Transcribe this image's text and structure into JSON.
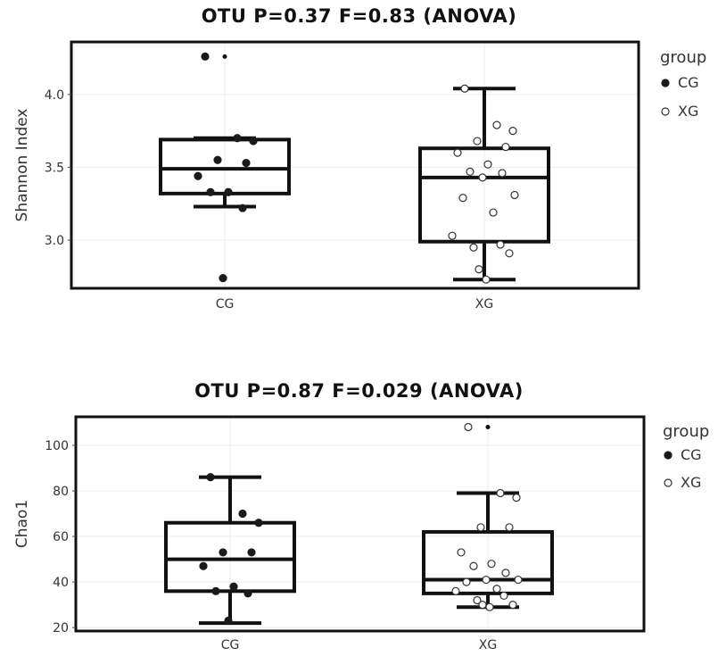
{
  "chart_data": [
    {
      "type": "box",
      "title": "OTU P=0.37 F=0.83 (ANOVA)",
      "xlabel": "",
      "ylabel": "Shannon Index",
      "ylim": [
        2.67,
        4.36
      ],
      "yticks": [
        3.0,
        3.5,
        4.0
      ],
      "ytick_labels": [
        "3.0",
        "3.5",
        "4.0"
      ],
      "categories": [
        "CG",
        "XG"
      ],
      "grid": true,
      "legend": {
        "title": "group",
        "placement": "right",
        "entries": [
          "CG",
          "XG"
        ]
      },
      "boxes": [
        {
          "group": "CG",
          "whisker_low": 3.23,
          "q1": 3.32,
          "median": 3.49,
          "q3": 3.69,
          "whisker_high": 3.7,
          "outliers": [
            4.26,
            2.74
          ]
        },
        {
          "group": "XG",
          "whisker_low": 2.73,
          "q1": 2.99,
          "median": 3.43,
          "q3": 3.63,
          "whisker_high": 4.04,
          "outliers": []
        }
      ],
      "points": [
        {
          "group": "CG",
          "values": [
            4.26,
            3.7,
            3.68,
            3.55,
            3.53,
            3.44,
            3.33,
            3.33,
            3.22,
            2.74
          ]
        },
        {
          "group": "XG",
          "values": [
            4.04,
            3.79,
            3.75,
            3.68,
            3.64,
            3.6,
            3.52,
            3.47,
            3.46,
            3.43,
            3.31,
            3.29,
            3.19,
            3.03,
            2.97,
            2.95,
            2.91,
            2.8,
            2.73
          ]
        }
      ]
    },
    {
      "type": "box",
      "title": "OTU P=0.87 F=0.029 (ANOVA)",
      "xlabel": "",
      "ylabel": "Chao1",
      "ylim": [
        18.5,
        112.5
      ],
      "yticks": [
        20,
        40,
        60,
        80,
        100
      ],
      "ytick_labels": [
        "20",
        "40",
        "60",
        "80",
        "100"
      ],
      "categories": [
        "CG",
        "XG"
      ],
      "grid": true,
      "legend": {
        "title": "group",
        "placement": "right",
        "entries": [
          "CG",
          "XG"
        ]
      },
      "boxes": [
        {
          "group": "CG",
          "whisker_low": 22,
          "q1": 36,
          "median": 50,
          "q3": 66,
          "whisker_high": 86,
          "outliers": []
        },
        {
          "group": "XG",
          "whisker_low": 29,
          "q1": 35,
          "median": 41,
          "q3": 62,
          "whisker_high": 79,
          "outliers": [
            108
          ]
        }
      ],
      "points": [
        {
          "group": "CG",
          "values": [
            86,
            70,
            66,
            53,
            53,
            47,
            38,
            36,
            35,
            23
          ]
        },
        {
          "group": "XG",
          "values": [
            108,
            79,
            77,
            64,
            64,
            53,
            48,
            47,
            44,
            41,
            41,
            40,
            37,
            36,
            34,
            32,
            30,
            30,
            29
          ]
        }
      ]
    }
  ]
}
